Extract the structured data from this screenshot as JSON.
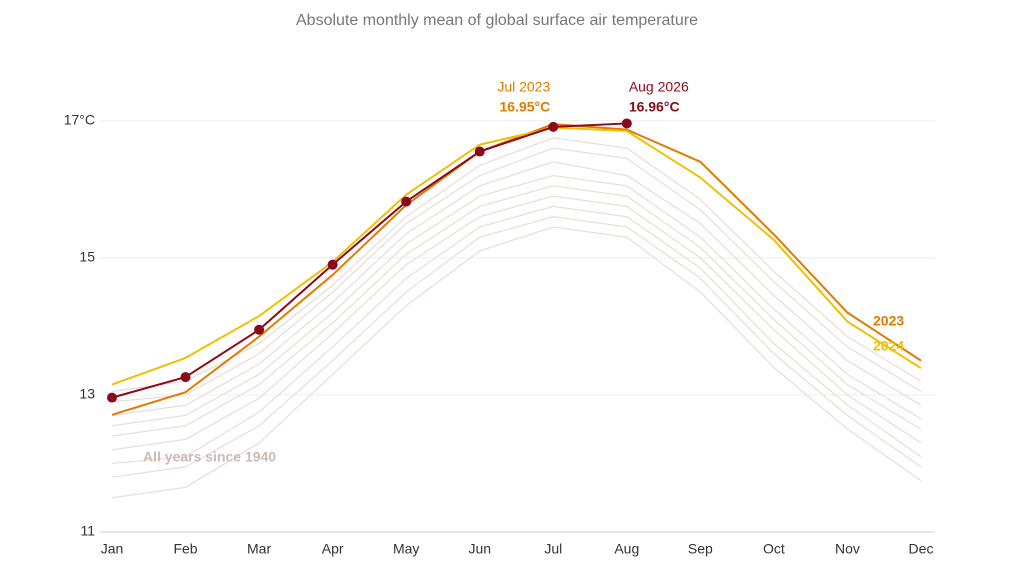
{
  "chart_data": {
    "type": "line",
    "title": "Absolute monthly mean of global surface air temperature",
    "categories": [
      "Jan",
      "Feb",
      "Mar",
      "Apr",
      "May",
      "Jun",
      "Jul",
      "Aug",
      "Sep",
      "Oct",
      "Nov",
      "Dec"
    ],
    "ylim": [
      11,
      17.9
    ],
    "yticks": [
      11,
      13,
      15,
      {
        "value": 17,
        "label": "17°C"
      }
    ],
    "grid": true,
    "background_color": "#e8dcd8",
    "background_label": "All years since 1940",
    "background_values": [
      [
        11.5,
        11.65,
        12.3,
        13.3,
        14.3,
        15.1,
        15.45,
        15.3,
        14.5,
        13.4,
        12.5,
        11.75
      ],
      [
        11.8,
        11.95,
        12.55,
        13.5,
        14.5,
        15.3,
        15.6,
        15.45,
        14.7,
        13.6,
        12.7,
        11.95
      ],
      [
        12.0,
        12.1,
        12.75,
        13.7,
        14.7,
        15.45,
        15.75,
        15.6,
        14.85,
        13.75,
        12.85,
        12.1
      ],
      [
        12.2,
        12.35,
        12.95,
        13.9,
        14.9,
        15.6,
        15.9,
        15.75,
        15.0,
        13.95,
        13.0,
        12.3
      ],
      [
        12.4,
        12.55,
        13.15,
        14.05,
        15.05,
        15.75,
        16.05,
        15.9,
        15.15,
        14.1,
        13.15,
        12.5
      ],
      [
        12.55,
        12.7,
        13.3,
        14.2,
        15.2,
        15.9,
        16.2,
        16.05,
        15.3,
        14.25,
        13.3,
        12.65
      ],
      [
        12.7,
        12.85,
        13.45,
        14.35,
        15.35,
        16.05,
        16.4,
        16.2,
        15.5,
        14.45,
        13.5,
        12.85
      ],
      [
        12.9,
        13.0,
        13.6,
        14.5,
        15.5,
        16.2,
        16.6,
        16.45,
        15.7,
        14.65,
        13.7,
        13.05
      ],
      [
        13.05,
        13.2,
        13.75,
        14.6,
        15.6,
        16.35,
        16.75,
        16.6,
        15.85,
        14.8,
        13.85,
        13.2
      ]
    ],
    "series": [
      {
        "name": "2023",
        "color": "#e07b00",
        "values": [
          12.71,
          13.04,
          13.85,
          14.75,
          15.77,
          16.55,
          16.95,
          16.87,
          16.4,
          15.34,
          14.2,
          13.5
        ],
        "value_labels": [
          null,
          null,
          null,
          null,
          null,
          null,
          "16.95°C",
          null,
          null,
          null,
          null,
          null
        ]
      },
      {
        "name": "2024",
        "color": "#f0c000",
        "values": [
          13.15,
          13.54,
          14.15,
          14.94,
          15.92,
          16.65,
          16.9,
          16.85,
          16.17,
          15.26,
          14.07,
          13.39
        ]
      },
      {
        "color": "#8b0a1a",
        "markers": true,
        "values": [
          12.96,
          13.26,
          13.95,
          14.9,
          15.82,
          16.55,
          16.91,
          16.96,
          null,
          null,
          null,
          null
        ],
        "value_labels": [
          null,
          null,
          null,
          null,
          null,
          null,
          null,
          "16.96°C",
          null,
          null,
          null,
          null
        ]
      }
    ],
    "annotations": [
      "Jul 2023",
      "Aug 2026"
    ]
  }
}
